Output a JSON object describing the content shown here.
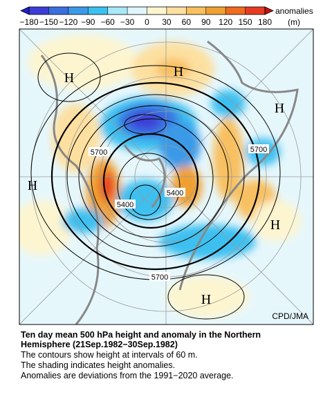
{
  "colorbar": {
    "title": "anomalies",
    "unit": "(m)",
    "ticks": [
      {
        "value": -180,
        "label": "−180"
      },
      {
        "value": -150,
        "label": "−150"
      },
      {
        "value": -120,
        "label": "−120"
      },
      {
        "value": -90,
        "label": "−90"
      },
      {
        "value": -60,
        "label": "−60"
      },
      {
        "value": -30,
        "label": "−30"
      },
      0,
      30,
      60,
      90,
      120,
      150,
      180
    ],
    "colors": [
      "#2020c8",
      "#3c3cd8",
      "#3a6fe0",
      "#3a9ae8",
      "#3cc0f0",
      "#a8e8f8",
      "#e0f6fc",
      "#fdf5d0",
      "#fde0a0",
      "#f8c060",
      "#f0a030",
      "#f06a20",
      "#e83a20",
      "#c81010"
    ]
  },
  "map": {
    "labels": [
      "H",
      "H",
      "H",
      "H",
      "H",
      "H"
    ],
    "contour_labels": [
      "5700",
      "5700",
      "5400",
      "5400",
      "5700"
    ],
    "credit": "CPD/JMA"
  },
  "caption": {
    "title": [
      "Ten day mean 500 hPa height and anomaly in the Northern",
      "Hemisphere (21Sep.1982−30Sep.1982)"
    ],
    "lines": [
      "The contours show height at intervals of 60 m.",
      "The shading indicates height anomalies.",
      "Anomalies are deviations from the 1991−2020 average."
    ]
  }
}
